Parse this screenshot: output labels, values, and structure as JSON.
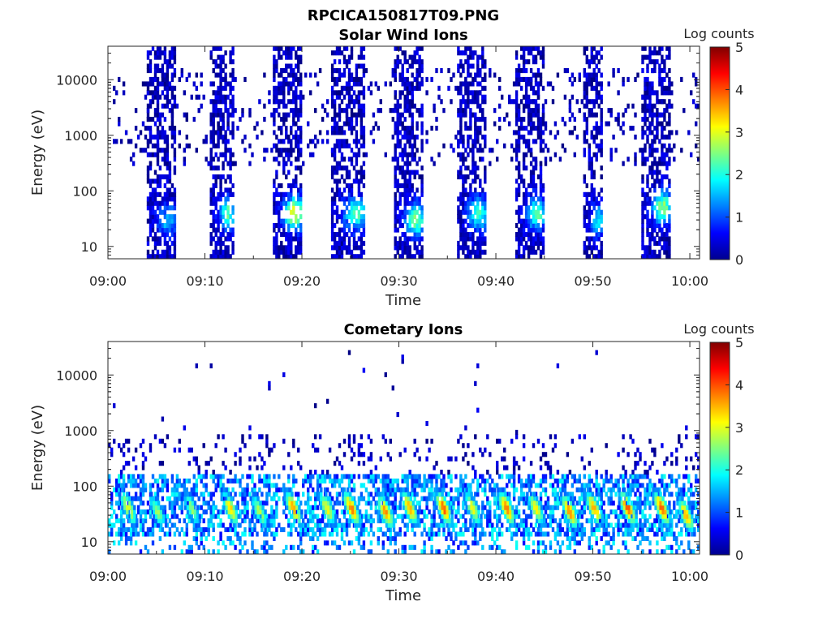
{
  "figure_title": "RPCICA150817T09.PNG",
  "colorbar_label": "Log counts",
  "colorbar_ticks": [
    "0",
    "1",
    "2",
    "3",
    "4",
    "5"
  ],
  "chart_data": [
    {
      "type": "heatmap",
      "title": "Solar Wind Ions",
      "xlabel": "Time",
      "ylabel": "Energy (eV)",
      "x_ticks": [
        "09:00",
        "09:10",
        "09:20",
        "09:30",
        "09:40",
        "09:50",
        "10:00"
      ],
      "y_ticks": [
        "10",
        "100",
        "1000",
        "10000"
      ],
      "xlim": [
        "09:00",
        "10:01"
      ],
      "ylim": [
        6,
        40000
      ],
      "yscale": "log",
      "colorscale": "jet",
      "clim": [
        0,
        5
      ],
      "sweeps": [
        {
          "start": "09:04:00",
          "end": "09:07:00",
          "peak_energy_eV": 30,
          "peak_log_counts": 1.3
        },
        {
          "start": "09:10:30",
          "end": "09:13:00",
          "peak_energy_eV": 40,
          "peak_log_counts": 2.0
        },
        {
          "start": "09:17:00",
          "end": "09:20:00",
          "peak_energy_eV": 40,
          "peak_log_counts": 2.8
        },
        {
          "start": "09:23:00",
          "end": "09:26:30",
          "peak_energy_eV": 40,
          "peak_log_counts": 2.0
        },
        {
          "start": "09:29:30",
          "end": "09:32:30",
          "peak_energy_eV": 30,
          "peak_log_counts": 2.2
        },
        {
          "start": "09:36:00",
          "end": "09:39:00",
          "peak_energy_eV": 40,
          "peak_log_counts": 2.0
        },
        {
          "start": "09:42:00",
          "end": "09:45:00",
          "peak_energy_eV": 40,
          "peak_log_counts": 2.0
        },
        {
          "start": "09:49:00",
          "end": "09:51:00",
          "peak_energy_eV": 30,
          "peak_log_counts": 1.5
        },
        {
          "start": "09:55:00",
          "end": "09:58:00",
          "peak_energy_eV": 50,
          "peak_log_counts": 2.3
        }
      ]
    },
    {
      "type": "heatmap",
      "title": "Cometary Ions",
      "xlabel": "Time",
      "ylabel": "Energy (eV)",
      "x_ticks": [
        "09:00",
        "09:10",
        "09:20",
        "09:30",
        "09:40",
        "09:50",
        "10:00"
      ],
      "y_ticks": [
        "10",
        "100",
        "1000",
        "10000"
      ],
      "xlim": [
        "09:00",
        "10:01"
      ],
      "ylim": [
        6,
        40000
      ],
      "yscale": "log",
      "colorscale": "jet",
      "clim": [
        0,
        5
      ],
      "bursts": [
        {
          "time": "09:02:00",
          "peak_energy_eV": 40,
          "peak_log_counts": 3.0
        },
        {
          "time": "09:05:00",
          "peak_energy_eV": 35,
          "peak_log_counts": 2.5
        },
        {
          "time": "09:08:30",
          "peak_energy_eV": 40,
          "peak_log_counts": 2.5
        },
        {
          "time": "09:12:30",
          "peak_energy_eV": 40,
          "peak_log_counts": 3.2
        },
        {
          "time": "09:15:30",
          "peak_energy_eV": 35,
          "peak_log_counts": 2.7
        },
        {
          "time": "09:19:00",
          "peak_energy_eV": 40,
          "peak_log_counts": 3.5
        },
        {
          "time": "09:22:30",
          "peak_energy_eV": 40,
          "peak_log_counts": 3.0
        },
        {
          "time": "09:25:00",
          "peak_energy_eV": 40,
          "peak_log_counts": 3.6
        },
        {
          "time": "09:28:30",
          "peak_energy_eV": 35,
          "peak_log_counts": 3.5
        },
        {
          "time": "09:31:00",
          "peak_energy_eV": 40,
          "peak_log_counts": 3.4
        },
        {
          "time": "09:34:30",
          "peak_energy_eV": 40,
          "peak_log_counts": 3.8
        },
        {
          "time": "09:37:30",
          "peak_energy_eV": 40,
          "peak_log_counts": 3.0
        },
        {
          "time": "09:41:00",
          "peak_energy_eV": 40,
          "peak_log_counts": 3.6
        },
        {
          "time": "09:44:00",
          "peak_energy_eV": 40,
          "peak_log_counts": 3.0
        },
        {
          "time": "09:47:30",
          "peak_energy_eV": 35,
          "peak_log_counts": 3.6
        },
        {
          "time": "09:50:00",
          "peak_energy_eV": 40,
          "peak_log_counts": 3.4
        },
        {
          "time": "09:53:30",
          "peak_energy_eV": 40,
          "peak_log_counts": 3.9
        },
        {
          "time": "09:57:00",
          "peak_energy_eV": 40,
          "peak_log_counts": 3.8
        },
        {
          "time": "09:59:30",
          "peak_energy_eV": 30,
          "peak_log_counts": 3.4
        }
      ]
    }
  ]
}
